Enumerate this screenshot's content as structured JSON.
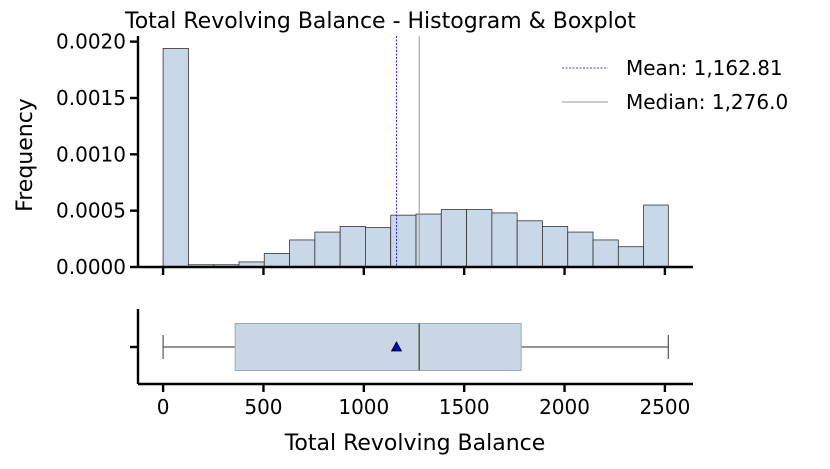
{
  "chart_data": {
    "type": "histogram+boxplot",
    "title": "Total Revolving Balance - Histogram & Boxplot",
    "xlabel": "Total Revolving Balance",
    "ylabel": "Frequency",
    "xlim": [
      -125,
      2640
    ],
    "ylim": [
      0,
      0.00205
    ],
    "x_ticks": [
      0,
      500,
      1000,
      1500,
      2000,
      2500
    ],
    "x_tick_labels": [
      "0",
      "500",
      "1000",
      "1500",
      "2000",
      "2500"
    ],
    "y_ticks": [
      0,
      0.0005,
      0.001,
      0.0015,
      0.002
    ],
    "y_tick_labels": [
      "0.0000",
      "0.0005",
      "0.0010",
      "0.0015",
      "0.0020"
    ],
    "bin_edges": [
      0,
      126,
      252,
      378,
      504,
      630,
      756,
      882,
      1008,
      1134,
      1260,
      1386,
      1512,
      1638,
      1764,
      1890,
      2016,
      2142,
      2268,
      2394,
      2517
    ],
    "values": [
      0.00194,
      2e-05,
      2e-05,
      4.5e-05,
      0.00012,
      0.00024,
      0.00031,
      0.00036,
      0.00035,
      0.00046,
      0.00047,
      0.00051,
      0.00051,
      0.00048,
      0.00041,
      0.00036,
      0.00031,
      0.00024,
      0.00018,
      0.00055
    ],
    "mean": 1162.81,
    "median": 1276.0,
    "legend": {
      "position": "top-right",
      "mean_label": "Mean: 1,162.81",
      "median_label": "Median: 1,276.0"
    },
    "boxplot": {
      "whisker_low": 0,
      "q1": 359,
      "median": 1276,
      "q3": 1784,
      "whisker_high": 2517,
      "mean": 1162.81
    },
    "colors": {
      "bar_fill": "#c8d8e8",
      "bar_edge": "#333333",
      "mean_line": "#0000ff",
      "median_line": "#999999",
      "box_fill": "#c9d6e3",
      "mean_marker": "#0000cc"
    }
  }
}
